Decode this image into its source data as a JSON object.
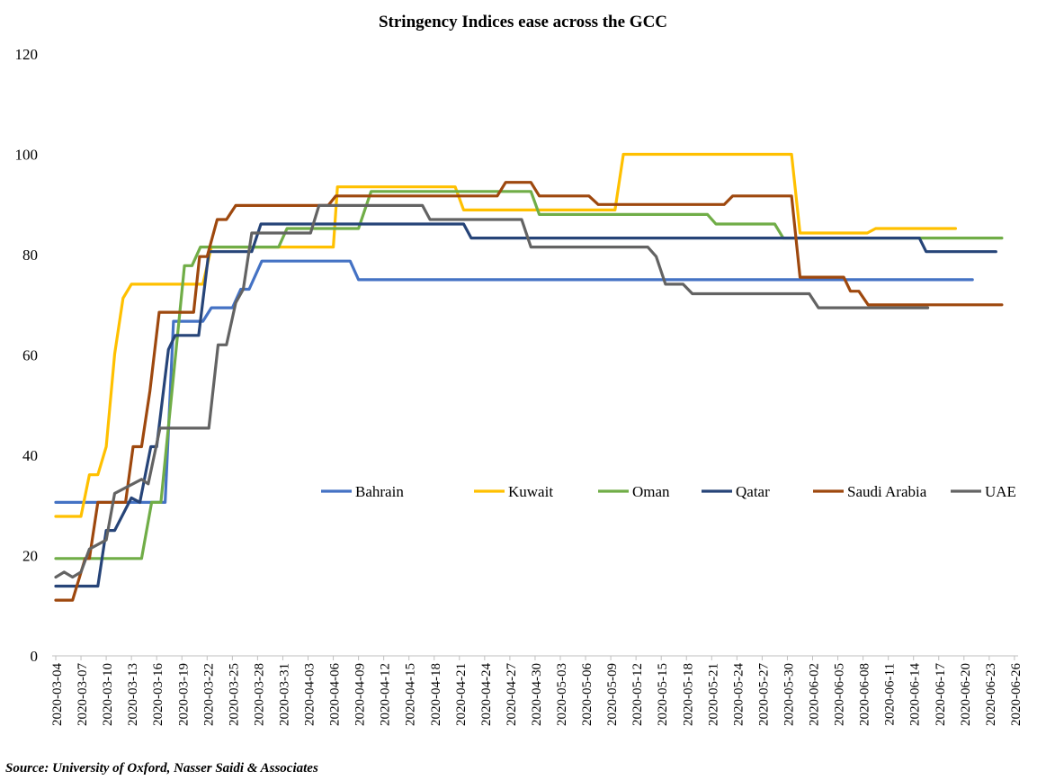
{
  "chart_data": {
    "type": "line",
    "title": "Stringency Indices ease across the GCC",
    "source": "Source: University of Oxford, Nasser Saidi & Associates",
    "xlabel": "",
    "ylabel": "",
    "ylim": [
      0,
      120
    ],
    "yticks": [
      "0",
      "20",
      "40",
      "60",
      "80",
      "100",
      "120"
    ],
    "x_start": "2020-03-04",
    "x_days_range": [
      0,
      114
    ],
    "xticks": [
      "2020-03-04",
      "2020-03-07",
      "2020-03-10",
      "2020-03-13",
      "2020-03-16",
      "2020-03-19",
      "2020-03-22",
      "2020-03-25",
      "2020-03-28",
      "2020-03-31",
      "2020-04-03",
      "2020-04-06",
      "2020-04-09",
      "2020-04-12",
      "2020-04-15",
      "2020-04-18",
      "2020-04-21",
      "2020-04-24",
      "2020-04-27",
      "2020-04-30",
      "2020-05-03",
      "2020-05-06",
      "2020-05-09",
      "2020-05-12",
      "2020-05-15",
      "2020-05-18",
      "2020-05-21",
      "2020-05-24",
      "2020-05-27",
      "2020-05-30",
      "2020-06-02",
      "2020-06-05",
      "2020-06-08",
      "2020-06-11",
      "2020-06-14",
      "2020-06-17",
      "2020-06-20",
      "2020-06-23",
      "2020-06-26"
    ],
    "grid": false,
    "legend_position": "center",
    "series": [
      {
        "name": "Bahrain",
        "color": "#4472C4",
        "points": [
          [
            0,
            30.6
          ],
          [
            13,
            30.6
          ],
          [
            14,
            66.7
          ],
          [
            17.5,
            66.7
          ],
          [
            18.5,
            69.4
          ],
          [
            21,
            69.4
          ],
          [
            22,
            73.1
          ],
          [
            23,
            73.1
          ],
          [
            24.5,
            78.7
          ],
          [
            35,
            78.7
          ],
          [
            36,
            75
          ],
          [
            109,
            75
          ]
        ]
      },
      {
        "name": "Kuwait",
        "color": "#FFC000",
        "points": [
          [
            0,
            27.8
          ],
          [
            3,
            27.8
          ],
          [
            4,
            36.1
          ],
          [
            5,
            36.1
          ],
          [
            6,
            41.7
          ],
          [
            7,
            60.2
          ],
          [
            8,
            71.3
          ],
          [
            9,
            74.1
          ],
          [
            17.5,
            74.1
          ],
          [
            18.5,
            81.5
          ],
          [
            33,
            81.5
          ],
          [
            33.5,
            93.5
          ],
          [
            47.5,
            93.5
          ],
          [
            48.5,
            88.9
          ],
          [
            66.5,
            88.9
          ],
          [
            67.5,
            100
          ],
          [
            87.5,
            100
          ],
          [
            88.5,
            84.3
          ],
          [
            96.5,
            84.3
          ],
          [
            97.5,
            85.2
          ],
          [
            107,
            85.2
          ]
        ]
      },
      {
        "name": "Oman",
        "color": "#70AD47",
        "points": [
          [
            0,
            19.4
          ],
          [
            10.2,
            19.4
          ],
          [
            11.4,
            30.6
          ],
          [
            12.5,
            30.6
          ],
          [
            15.3,
            77.8
          ],
          [
            16.2,
            77.8
          ],
          [
            17.2,
            81.5
          ],
          [
            26.5,
            81.5
          ],
          [
            27.5,
            85.2
          ],
          [
            36,
            85.2
          ],
          [
            37.5,
            92.6
          ],
          [
            56.5,
            92.6
          ],
          [
            57.5,
            88
          ],
          [
            77.5,
            88
          ],
          [
            78.5,
            86.1
          ],
          [
            85.5,
            86.1
          ],
          [
            86.5,
            83.3
          ],
          [
            112.5,
            83.3
          ]
        ]
      },
      {
        "name": "Qatar",
        "color": "#264478",
        "points": [
          [
            0,
            13.9
          ],
          [
            5,
            13.9
          ],
          [
            6,
            25
          ],
          [
            7,
            25
          ],
          [
            9,
            31.5
          ],
          [
            10,
            30.6
          ],
          [
            11.3,
            41.7
          ],
          [
            12,
            41.7
          ],
          [
            13.4,
            61.1
          ],
          [
            14.2,
            63.9
          ],
          [
            17,
            63.9
          ],
          [
            18.2,
            80.6
          ],
          [
            23.3,
            80.6
          ],
          [
            24.4,
            86.1
          ],
          [
            48.5,
            86.1
          ],
          [
            49.4,
            83.3
          ],
          [
            102.7,
            83.3
          ],
          [
            103.5,
            80.6
          ],
          [
            111.8,
            80.6
          ]
        ]
      },
      {
        "name": "Saudi Arabia",
        "color": "#9E480E",
        "points": [
          [
            0,
            11.1
          ],
          [
            2,
            11.1
          ],
          [
            3.5,
            19.4
          ],
          [
            4,
            19.4
          ],
          [
            5,
            30.6
          ],
          [
            8.3,
            30.6
          ],
          [
            9.2,
            41.7
          ],
          [
            10.2,
            41.7
          ],
          [
            11.2,
            52.8
          ],
          [
            12.3,
            68.5
          ],
          [
            16.4,
            68.5
          ],
          [
            17.1,
            79.6
          ],
          [
            18,
            79.6
          ],
          [
            19.2,
            87
          ],
          [
            20.3,
            87
          ],
          [
            21.4,
            89.8
          ],
          [
            32.4,
            89.8
          ],
          [
            33.3,
            91.7
          ],
          [
            52.5,
            91.7
          ],
          [
            53.5,
            94.4
          ],
          [
            56.5,
            94.4
          ],
          [
            57.5,
            91.7
          ],
          [
            63.4,
            91.7
          ],
          [
            64.5,
            90
          ],
          [
            79.5,
            90
          ],
          [
            80.5,
            91.7
          ],
          [
            87.5,
            91.7
          ],
          [
            88.5,
            75.5
          ],
          [
            93.7,
            75.5
          ],
          [
            94.5,
            72.7
          ],
          [
            95.5,
            72.7
          ],
          [
            96.6,
            70
          ],
          [
            112.5,
            70
          ]
        ]
      },
      {
        "name": "UAE",
        "color": "#636363",
        "points": [
          [
            0,
            15.7
          ],
          [
            1,
            16.7
          ],
          [
            2,
            15.7
          ],
          [
            3,
            16.7
          ],
          [
            4,
            21.3
          ],
          [
            6,
            23.1
          ],
          [
            7,
            32.4
          ],
          [
            10.2,
            35.2
          ],
          [
            11,
            34.3
          ],
          [
            12.4,
            45.4
          ],
          [
            18.2,
            45.4
          ],
          [
            19.3,
            62
          ],
          [
            20.3,
            62
          ],
          [
            21.4,
            70.4
          ],
          [
            22.3,
            73.1
          ],
          [
            23.3,
            84.3
          ],
          [
            30.3,
            84.3
          ],
          [
            31.3,
            89.8
          ],
          [
            43.6,
            89.8
          ],
          [
            44.5,
            87
          ],
          [
            55.4,
            87
          ],
          [
            56.5,
            81.5
          ],
          [
            70.4,
            81.5
          ],
          [
            71.4,
            79.6
          ],
          [
            72.5,
            74.1
          ],
          [
            74.6,
            74.1
          ],
          [
            75.7,
            72.2
          ],
          [
            89.6,
            72.2
          ],
          [
            90.7,
            69.4
          ],
          [
            103.7,
            69.4
          ]
        ]
      }
    ]
  }
}
